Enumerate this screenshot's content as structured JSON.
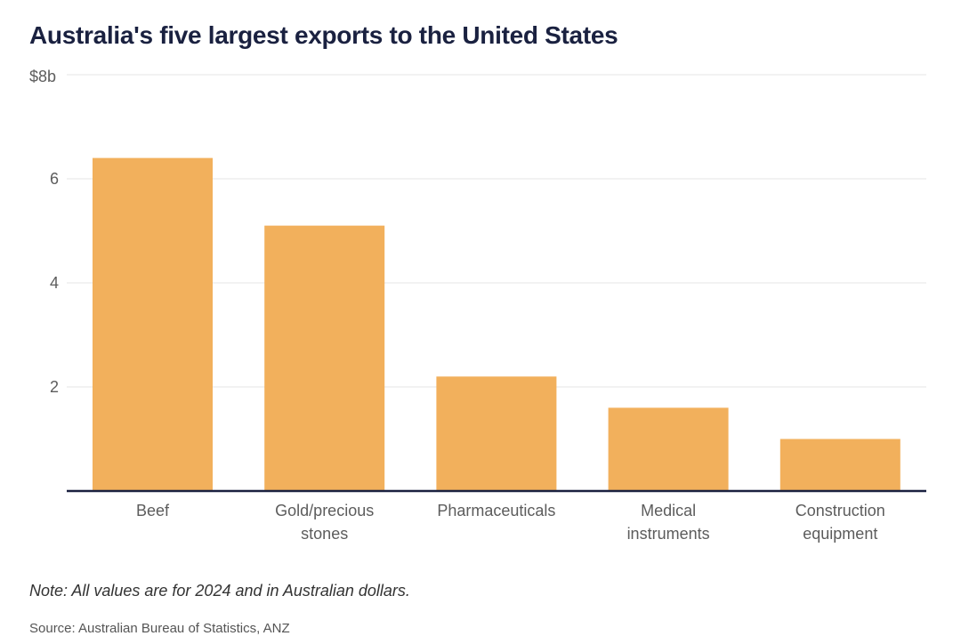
{
  "chart_data": {
    "type": "bar",
    "title": "Australia's five largest exports to the United States",
    "categories": [
      [
        "Beef"
      ],
      [
        "Gold/precious",
        "stones"
      ],
      [
        "Pharmaceuticals"
      ],
      [
        "Medical",
        "instruments"
      ],
      [
        "Construction",
        "equipment"
      ]
    ],
    "values": [
      6.4,
      5.1,
      2.2,
      1.6,
      1.0
    ],
    "ylim": [
      0,
      8
    ],
    "yticks": [
      2,
      4,
      6,
      8
    ],
    "ytick_labels": [
      "2",
      "4",
      "6",
      "$8b"
    ],
    "xlabel": "",
    "ylabel": "",
    "grid": true,
    "bar_color": "#f2b05c",
    "axis_color": "#1a2140",
    "grid_color": "#e4e4e4"
  },
  "note": "Note: All values are for 2024 and in Australian dollars.",
  "source": "Source: Australian Bureau of Statistics, ANZ"
}
